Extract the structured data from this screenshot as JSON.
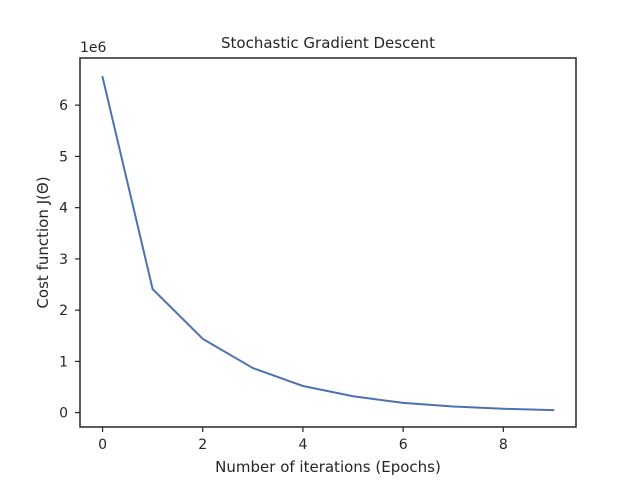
{
  "chart_data": {
    "type": "line",
    "title": "Stochastic Gradient Descent",
    "xlabel": "Number of iterations (Epochs)",
    "ylabel": "Cost function  J(Θ)",
    "offset_text": "1e6",
    "xlim": [
      -0.45,
      9.45
    ],
    "ylim": [
      -0.28,
      6.92
    ],
    "scale": 1000000,
    "xticks": [
      0,
      2,
      4,
      6,
      8
    ],
    "yticks": [
      0,
      1,
      2,
      3,
      4,
      5,
      6
    ],
    "grid": false,
    "color": "#4c72b0",
    "series": [
      {
        "x": [
          0,
          1,
          2,
          3,
          4,
          5,
          6,
          7,
          8,
          9
        ],
        "y": [
          6550000,
          2410000,
          1440000,
          870000,
          520000,
          320000,
          190000,
          120000,
          75000,
          50000
        ]
      }
    ]
  }
}
